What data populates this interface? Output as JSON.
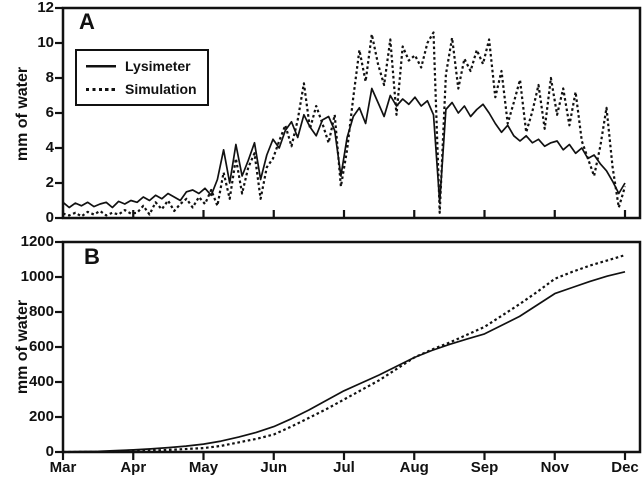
{
  "colors": {
    "foreground": "#111111",
    "background": "#ffffff"
  },
  "chart_data": [
    {
      "id": "panel-a",
      "type": "line",
      "panel_label": "A",
      "title": "",
      "xlabel": "",
      "ylabel": "mm of water",
      "ylim": [
        0,
        12
      ],
      "yticks": [
        0,
        2,
        4,
        6,
        8,
        10,
        12
      ],
      "x_tick_labels": [
        "Mar",
        "Apr",
        "May",
        "Jun",
        "Jul",
        "Aug",
        "Sep",
        "Nov",
        "Dec"
      ],
      "show_x_tick_labels": false,
      "grid": false,
      "legend": {
        "visible": true,
        "position": "upper-left"
      },
      "series": [
        {
          "name": "Lysimeter",
          "style": "solid",
          "values": [
            0.9,
            0.6,
            0.85,
            0.7,
            0.9,
            0.65,
            0.8,
            0.9,
            0.6,
            0.95,
            0.8,
            1.0,
            0.9,
            1.2,
            1.0,
            1.3,
            1.1,
            1.4,
            1.2,
            1.0,
            1.5,
            1.6,
            1.4,
            1.7,
            1.3,
            2.2,
            3.9,
            2.0,
            4.2,
            2.4,
            3.3,
            4.3,
            2.2,
            3.6,
            4.5,
            4.0,
            5.0,
            5.5,
            4.6,
            5.9,
            5.2,
            4.7,
            5.6,
            5.8,
            5.0,
            2.4,
            4.6,
            5.8,
            6.3,
            5.4,
            7.4,
            6.6,
            5.8,
            7.0,
            6.4,
            6.8,
            6.5,
            6.9,
            6.4,
            6.7,
            5.9,
            0.9,
            6.2,
            6.6,
            6.0,
            6.4,
            5.8,
            6.2,
            6.5,
            6.0,
            5.4,
            4.9,
            5.3,
            4.7,
            4.4,
            4.7,
            4.3,
            4.5,
            4.1,
            4.3,
            4.4,
            3.9,
            4.2,
            3.7,
            4.0,
            3.4,
            3.6,
            3.1,
            2.7,
            2.1,
            1.4,
            2.0
          ]
        },
        {
          "name": "Simulation",
          "style": "dotted",
          "values": [
            0.25,
            0.15,
            0.3,
            0.1,
            0.35,
            0.2,
            0.4,
            0.15,
            0.3,
            0.2,
            0.45,
            0.25,
            0.3,
            0.7,
            0.2,
            0.9,
            0.5,
            1.0,
            0.4,
            0.8,
            1.1,
            0.6,
            1.2,
            0.8,
            1.6,
            0.7,
            2.6,
            1.1,
            3.4,
            1.4,
            2.9,
            3.7,
            1.1,
            2.9,
            3.4,
            4.4,
            5.3,
            4.1,
            5.6,
            7.7,
            5.1,
            6.4,
            5.4,
            4.3,
            5.9,
            1.8,
            3.9,
            6.9,
            9.6,
            7.8,
            10.5,
            8.8,
            7.6,
            10.2,
            5.9,
            9.8,
            9.0,
            9.3,
            8.6,
            10.0,
            10.6,
            0.3,
            8.2,
            10.3,
            7.4,
            9.1,
            8.4,
            9.6,
            8.8,
            10.2,
            6.9,
            8.4,
            5.4,
            6.6,
            7.9,
            4.9,
            6.1,
            7.6,
            5.1,
            8.0,
            5.9,
            7.4,
            5.3,
            7.2,
            4.4,
            3.4,
            2.4,
            4.1,
            6.3,
            2.9,
            0.6,
            1.8
          ]
        }
      ]
    },
    {
      "id": "panel-b",
      "type": "line",
      "panel_label": "B",
      "title": "",
      "xlabel": "",
      "ylabel": "mm of water",
      "ylim": [
        0,
        1200
      ],
      "yticks": [
        0,
        200,
        400,
        600,
        800,
        1000,
        1200
      ],
      "x_tick_labels": [
        "Mar",
        "Apr",
        "May",
        "Jun",
        "Jul",
        "Aug",
        "Sep",
        "Nov",
        "Dec"
      ],
      "show_x_tick_labels": true,
      "grid": false,
      "legend": {
        "visible": false,
        "position": ""
      },
      "series": [
        {
          "name": "Lysimeter",
          "style": "solid",
          "values": [
            0,
            2,
            4,
            8,
            12,
            18,
            25,
            34,
            45,
            62,
            85,
            112,
            145,
            190,
            240,
            295,
            350,
            395,
            440,
            490,
            540,
            580,
            615,
            645,
            675,
            725,
            775,
            840,
            905,
            940,
            975,
            1005,
            1030
          ]
        },
        {
          "name": "Simulation",
          "style": "dotted",
          "values": [
            0,
            0.5,
            1,
            3,
            5,
            8,
            12,
            17,
            22,
            35,
            55,
            75,
            100,
            145,
            195,
            245,
            300,
            355,
            410,
            475,
            540,
            585,
            625,
            670,
            715,
            780,
            845,
            915,
            990,
            1030,
            1065,
            1095,
            1125
          ]
        }
      ]
    }
  ]
}
